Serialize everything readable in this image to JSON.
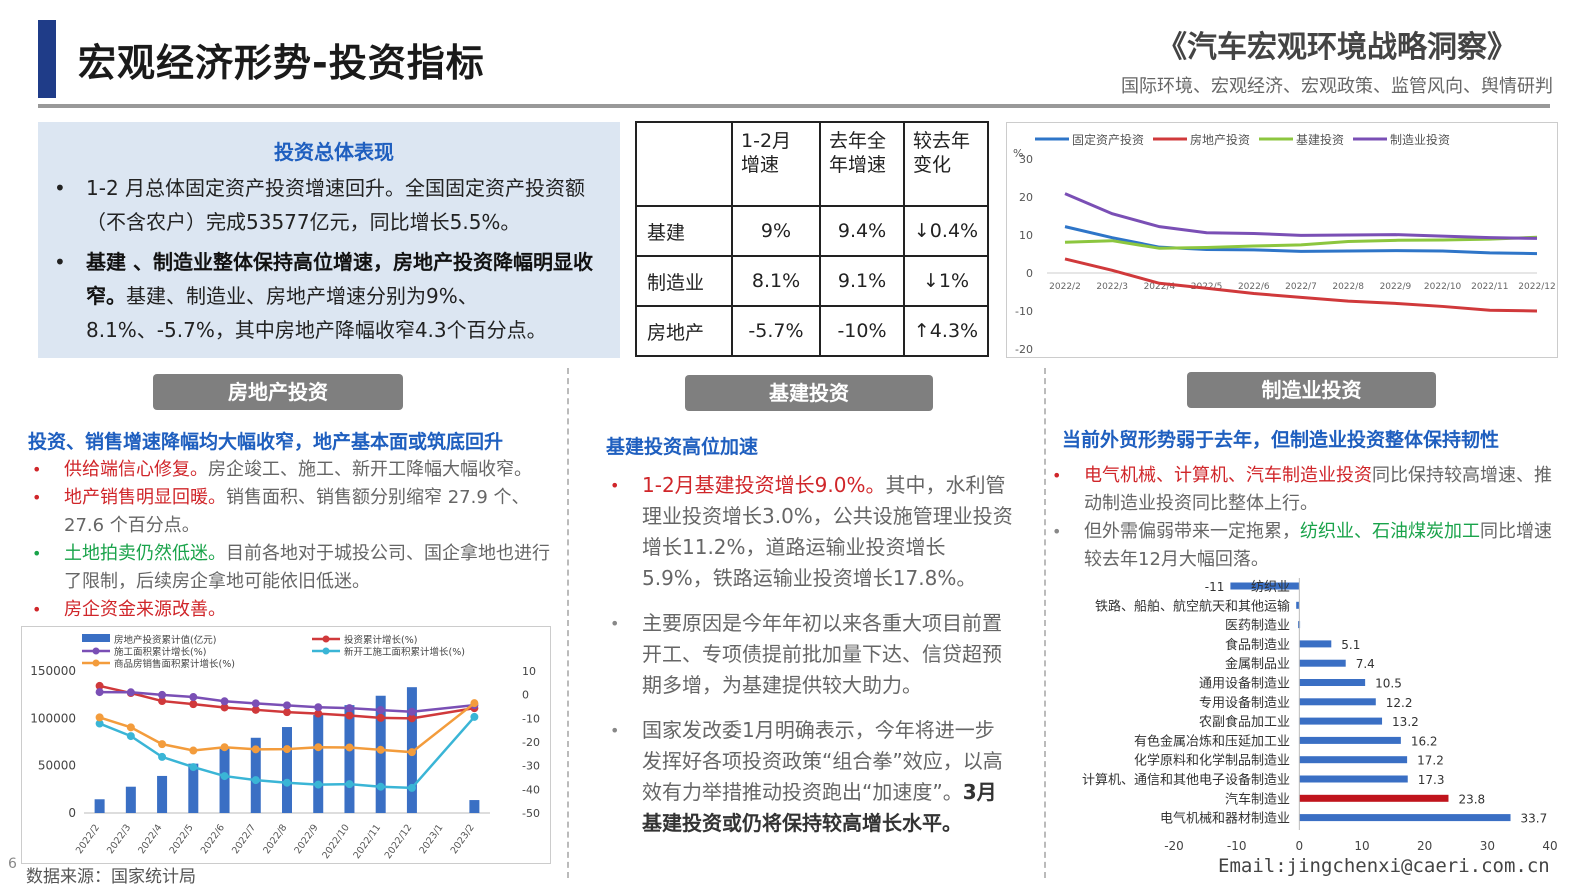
{
  "header": {
    "title": "宏观经济形势-投资指标",
    "report_title": "《汽车宏观环境战略洞察》",
    "report_subtitle": "国际环境、宏观经济、宏观政策、监管风向、舆情研判"
  },
  "overview": {
    "heading": "投资总体表现",
    "bullet1": "1-2 月总体固定资产投资增速回升。全国固定资产投资额（不含农户）完成53577亿元，同比增长5.5%。",
    "bullet2_bold": "基建 、制造业整体保持高位增速，房地产投资降幅明显收窄。",
    "bullet2_rest": "基建、制造业、房地产增速分别为9%、8.1%、-5.7%，其中房地产降幅收窄4.3个百分点。"
  },
  "table": {
    "headers": [
      "",
      "1-2月增速",
      "去年全年增速",
      "较去年变化"
    ],
    "rows": [
      {
        "name": "基建",
        "c1": "9%",
        "c2": "9.4%",
        "c3": "↓0.4%"
      },
      {
        "name": "制造业",
        "c1": "8.1%",
        "c2": "9.1%",
        "c3": "↓1%"
      },
      {
        "name": "房地产",
        "c1": "-5.7%",
        "c2": "-10%",
        "c3": "↑4.3%"
      }
    ]
  },
  "sections": {
    "real_estate": {
      "button": "房地产投资",
      "heading": "投资、销售增速降幅均大幅收窄，地产基本面或筑底回升",
      "items": [
        {
          "lead": "供给端信心修复。",
          "text": "房企竣工、施工、新开工降幅大幅收窄。"
        },
        {
          "lead": "地产销售明显回暖。",
          "text": "销售面积、销售额分别缩窄 27.9 个、27.6 个百分点。"
        },
        {
          "lead": "土地拍卖仍然低迷。",
          "text": "目前各地对于城投公司、国企拿地也进行了限制，后续房企拿地可能依旧低迷。"
        },
        {
          "lead": "房企资金来源改善。",
          "text": ""
        }
      ]
    },
    "infra": {
      "button": "基建投资",
      "heading": "基建投资高位加速",
      "item1_lead": "1-2月基建投资增长9.0%。",
      "item1_text": "其中，水利管理业投资增长3.0%，公共设施管理业投资增长11.2%，道路运输业投资增长5.9%，铁路运输业投资增长17.8%。",
      "item2_text": "主要原因是今年年初以来各重大项目前置开工、专项债提前批加量下达、信贷超预期多增，为基建提供较大助力。",
      "item3_text": "国家发改委1月明确表示，今年将进一步发挥好各项投资政策“组合拳”效应，以高效有力举措推动投资跑出“加速度”。",
      "item3_bold": "3月基建投资或仍将保持较高增长水平。"
    },
    "manufacturing": {
      "button": "制造业投资",
      "heading": "当前外贸形势弱于去年，但制造业投资整体保持韧性",
      "item1_lead": "电气机械、计算机、汽车制造业投资",
      "item1_text": "同比保持较高增速、推动制造业投资同比整体上行。",
      "item2_pre": "但外需偏弱带来一定拖累，",
      "item2_green": "纺织业、石油煤炭加工",
      "item2_post": "同比增速较去年12月大幅回落。"
    }
  },
  "footer": {
    "source": "数据来源：国家统计局",
    "page": "6",
    "email": "Email:jingchenxi@caeri.com.cn"
  },
  "colors": {
    "accent_blue": "#1f5fbf",
    "green": "#19a34a",
    "red": "#d0262a",
    "bar_blue": "#3a6fc4"
  },
  "chart_data": [
    {
      "type": "line",
      "x": [
        "2022/2",
        "2022/3",
        "2022/4",
        "2022/5",
        "2022/6",
        "2022/7",
        "2022/8",
        "2022/9",
        "2022/10",
        "2022/11",
        "2022/12"
      ],
      "ylim": [
        -20,
        30
      ],
      "yticks": [
        30,
        20,
        10,
        0,
        -10,
        -20
      ],
      "ylabel": "%",
      "legend_position": "top",
      "series": [
        {
          "name": "固定资产投资",
          "color": "#2e75c8",
          "values": [
            12.2,
            9.3,
            6.8,
            6.2,
            6.1,
            5.7,
            5.8,
            5.9,
            5.8,
            5.3,
            5.1
          ]
        },
        {
          "name": "房地产投资",
          "color": "#d0393b",
          "values": [
            3.7,
            0.7,
            -2.7,
            -4.0,
            -5.4,
            -6.4,
            -7.4,
            -8.0,
            -8.8,
            -9.8,
            -10.0
          ]
        },
        {
          "name": "基建投资",
          "color": "#8cc63f",
          "values": [
            8.1,
            8.5,
            6.5,
            6.7,
            7.1,
            7.4,
            8.3,
            8.6,
            8.7,
            8.9,
            9.4
          ]
        },
        {
          "name": "制造业投资",
          "color": "#7a4fb5",
          "values": [
            20.9,
            15.6,
            12.2,
            10.6,
            10.4,
            9.9,
            10.0,
            10.1,
            9.7,
            9.3,
            9.1
          ]
        }
      ]
    },
    {
      "type": "bar",
      "categories": [
        "2022/2",
        "2022/3",
        "2022/4",
        "2022/5",
        "2022/6",
        "2022/7",
        "2022/8",
        "2022/9",
        "2022/10",
        "2022/11",
        "2022/12",
        "2023/1",
        "2023/2"
      ],
      "ylim": [
        0,
        150000
      ],
      "yticks": [
        150000,
        100000,
        50000,
        0
      ],
      "y2lim": [
        -50,
        10
      ],
      "y2ticks": [
        10,
        0,
        -10,
        -20,
        -30,
        -40,
        -50
      ],
      "series": [
        {
          "name": "房地产投资累计值(亿元)",
          "type": "bar",
          "axis": "left",
          "color": "#3a6fc4",
          "values": [
            14499,
            27765,
            39154,
            52134,
            68314,
            79462,
            90809,
            103559,
            113945,
            123863,
            132895,
            null,
            13669
          ]
        },
        {
          "name": "投资累计增长(%)",
          "type": "line",
          "axis": "right",
          "color": "#d0393b",
          "values": [
            3.7,
            0.7,
            -2.7,
            -4.0,
            -5.4,
            -6.4,
            -7.4,
            -8.0,
            -8.8,
            -9.8,
            -10.0,
            null,
            -5.7
          ]
        },
        {
          "name": "施工面积累计增长(%)",
          "type": "line",
          "axis": "right",
          "color": "#7a4fb5",
          "values": [
            1.1,
            1.0,
            -0.1,
            -1.0,
            -2.8,
            -3.7,
            -4.5,
            -5.3,
            -5.7,
            -6.5,
            -7.2,
            null,
            -4.4
          ]
        },
        {
          "name": "新开工施工面积累计增长(%)",
          "type": "line",
          "axis": "right",
          "color": "#3ab5d6",
          "values": [
            -12.2,
            -17.5,
            -26.3,
            -30.6,
            -34.4,
            -36.1,
            -37.2,
            -38.0,
            -37.8,
            -38.9,
            -39.4,
            null,
            -9.4
          ]
        },
        {
          "name": "商品房销售面积累计增长(%)",
          "type": "line",
          "axis": "right",
          "color": "#f39c3c",
          "values": [
            -9.6,
            -13.8,
            -20.9,
            -23.6,
            -22.2,
            -23.1,
            -23.0,
            -22.2,
            -22.3,
            -23.3,
            -24.3,
            null,
            -3.6
          ]
        }
      ]
    },
    {
      "type": "bar",
      "orientation": "horizontal",
      "categories": [
        "纺织业",
        "铁路、船舶、航空航天和其他运输",
        "医药制造业",
        "食品制造业",
        "金属制品业",
        "通用设备制造业",
        "专用设备制造业",
        "农副食品加工业",
        "有色金属冶炼和压延加工业",
        "化学原料和化学制品制造业",
        "计算机、通信和其他电子设备制造业",
        "汽车制造业",
        "电气机械和器材制造业"
      ],
      "values": [
        -11,
        -0.5,
        -0.2,
        5.1,
        7.4,
        10.5,
        12.2,
        13.2,
        16.2,
        17.2,
        17.3,
        23.8,
        33.7
      ],
      "value_labels": [
        "-11",
        "",
        "",
        "5.1",
        "7.4",
        "10.5",
        "12.2",
        "13.2",
        "16.2",
        "17.2",
        "17.3",
        "23.8",
        "33.7"
      ],
      "highlight": "汽车制造业",
      "highlight_color": "#c0141c",
      "bar_color": "#3a6fc4",
      "xlim": [
        -20,
        40
      ],
      "xticks": [
        -20,
        -10,
        0,
        10,
        20,
        30,
        40
      ]
    }
  ]
}
